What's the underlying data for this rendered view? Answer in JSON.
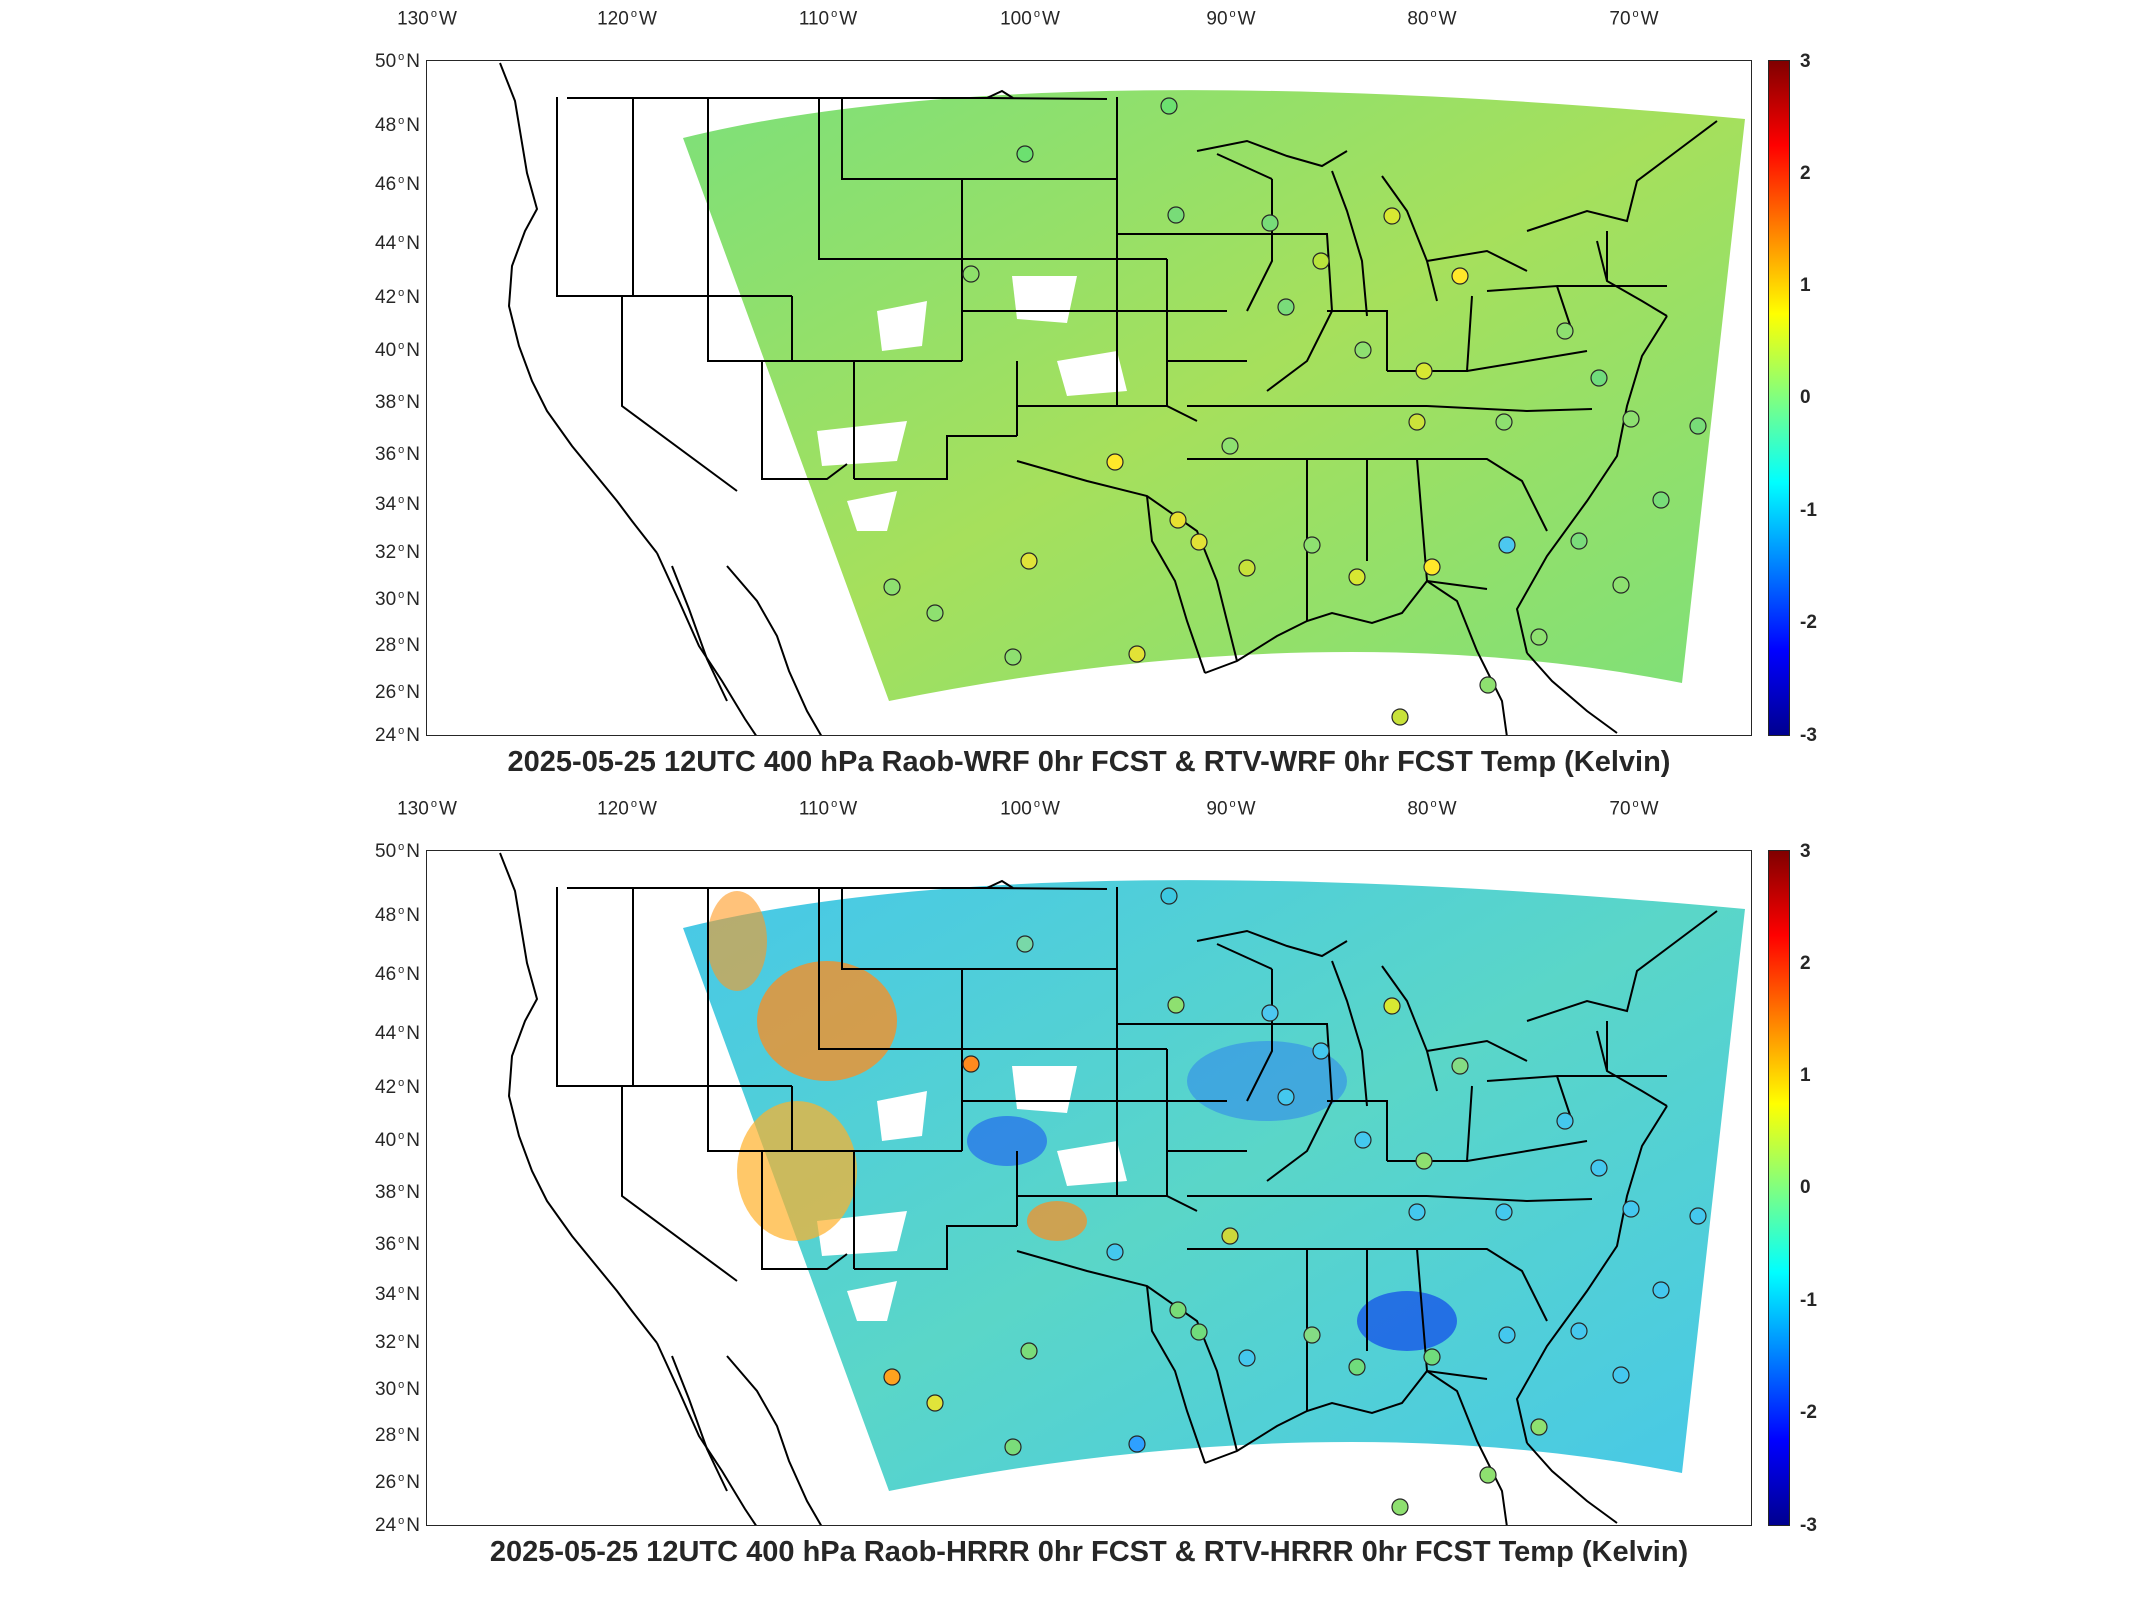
{
  "panels": [
    {
      "title": "2025-05-25 12UTC 400 hPa Raob-WRF 0hr FCST & RTV-WRF 0hr FCST Temp (Kelvin)",
      "field_tone": "greenish",
      "anomaly_regions": []
    },
    {
      "title": "2025-05-25 12UTC 400 hPa Raob-HRRR 0hr FCST & RTV-HRRR 0hr FCST Temp (Kelvin)",
      "field_tone": "bluish",
      "anomaly_regions": [
        "warm-west",
        "cold-southeast",
        "cold-plains"
      ]
    }
  ],
  "lon_labels": [
    "130",
    "120",
    "110",
    "100",
    "90",
    "80",
    "70"
  ],
  "lon_suffix": "W",
  "lat_labels": [
    "50",
    "48",
    "46",
    "44",
    "42",
    "40",
    "38",
    "36",
    "34",
    "32",
    "30",
    "28",
    "26",
    "24"
  ],
  "lat_suffix": "N",
  "colorbar": {
    "ticks": [
      "3",
      "2",
      "1",
      "0",
      "-1",
      "-2",
      "-3"
    ],
    "min": -3,
    "max": 3,
    "colormap": [
      "#00008f",
      "#0000ff",
      "#0080ff",
      "#00ffff",
      "#80ff80",
      "#ffff00",
      "#ff8000",
      "#ff0000",
      "#800000"
    ]
  },
  "colors": {
    "field_green": "#7de07a",
    "field_blue": "#47c8e8",
    "coastline": "#000000",
    "background": "#ffffff"
  }
}
